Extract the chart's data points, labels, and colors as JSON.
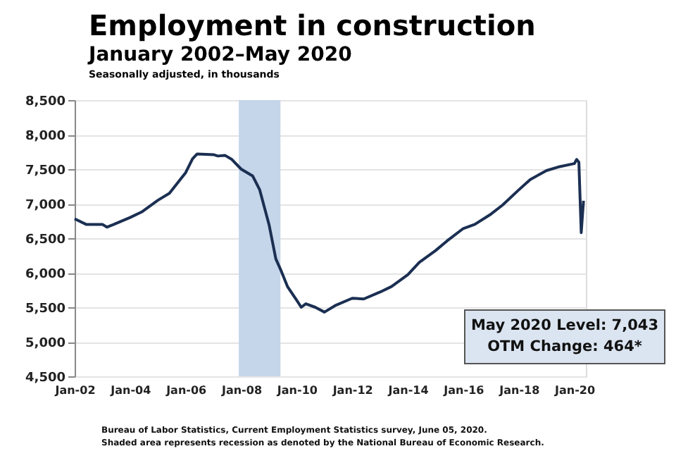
{
  "chart_data": {
    "type": "line",
    "title": "Employment in construction",
    "subtitle": "January 2002–May 2020",
    "ylabel": "Seasonally adjusted, in thousands",
    "x": [
      "2002-01",
      "2002-06",
      "2003-01",
      "2003-03",
      "2003-06",
      "2004-01",
      "2004-06",
      "2005-01",
      "2005-06",
      "2006-01",
      "2006-04",
      "2006-06",
      "2007-01",
      "2007-03",
      "2007-06",
      "2007-09",
      "2008-01",
      "2008-06",
      "2008-09",
      "2009-01",
      "2009-04",
      "2009-06",
      "2009-09",
      "2010-01",
      "2010-03",
      "2010-05",
      "2010-09",
      "2011-01",
      "2011-06",
      "2012-01",
      "2012-06",
      "2013-01",
      "2013-06",
      "2014-01",
      "2014-06",
      "2015-01",
      "2015-06",
      "2016-01",
      "2016-06",
      "2017-01",
      "2017-06",
      "2018-01",
      "2018-06",
      "2019-01",
      "2019-06",
      "2020-01",
      "2020-02",
      "2020-03",
      "2020-04",
      "2020-05"
    ],
    "series": [
      {
        "color": "#1b2f52",
        "line_style": "solid",
        "marker": "none",
        "values": [
          6780,
          6700,
          6700,
          6660,
          6700,
          6800,
          6880,
          7050,
          7150,
          7450,
          7650,
          7720,
          7710,
          7690,
          7700,
          7640,
          7500,
          7400,
          7200,
          6700,
          6200,
          6050,
          5800,
          5600,
          5500,
          5550,
          5500,
          5430,
          5530,
          5630,
          5620,
          5720,
          5800,
          5970,
          6150,
          6320,
          6460,
          6640,
          6700,
          6850,
          6980,
          7200,
          7350,
          7480,
          7530,
          7580,
          7640,
          7600,
          6580,
          7043
        ]
      }
    ],
    "xlim": [
      "2002-01",
      "2020-06"
    ],
    "xticks": [
      {
        "value": "2002-01",
        "label": "Jan-02"
      },
      {
        "value": "2004-01",
        "label": "Jan-04"
      },
      {
        "value": "2006-01",
        "label": "Jan-06"
      },
      {
        "value": "2008-01",
        "label": "Jan-08"
      },
      {
        "value": "2010-01",
        "label": "Jan-10"
      },
      {
        "value": "2012-01",
        "label": "Jan-12"
      },
      {
        "value": "2014-01",
        "label": "Jan-14"
      },
      {
        "value": "2016-01",
        "label": "Jan-16"
      },
      {
        "value": "2018-01",
        "label": "Jan-18"
      },
      {
        "value": "2020-01",
        "label": "Jan-20"
      }
    ],
    "ylim": [
      4500,
      8500
    ],
    "yticks": [
      {
        "value": 4500,
        "label": "4,500"
      },
      {
        "value": 5000,
        "label": "5,000"
      },
      {
        "value": 5500,
        "label": "5,500"
      },
      {
        "value": 6000,
        "label": "6,000"
      },
      {
        "value": 6500,
        "label": "6,500"
      },
      {
        "value": 7000,
        "label": "7,000"
      },
      {
        "value": 7500,
        "label": "7,500"
      },
      {
        "value": 8000,
        "label": "8,000"
      },
      {
        "value": 8500,
        "label": "8,500"
      }
    ],
    "grid": "y",
    "bands": [
      {
        "axis": "x",
        "from": "2007-12",
        "to": "2009-06",
        "color": "#c5d5ea"
      }
    ],
    "annotations": [
      "May 2020 Level: 7,043",
      "OTM Change: 464*",
      "Bureau of Labor Statistics, Current Employment Statistics survey, June 05, 2020.",
      "Shaded area represents recession as denoted by the National Bureau of Economic Research."
    ]
  }
}
